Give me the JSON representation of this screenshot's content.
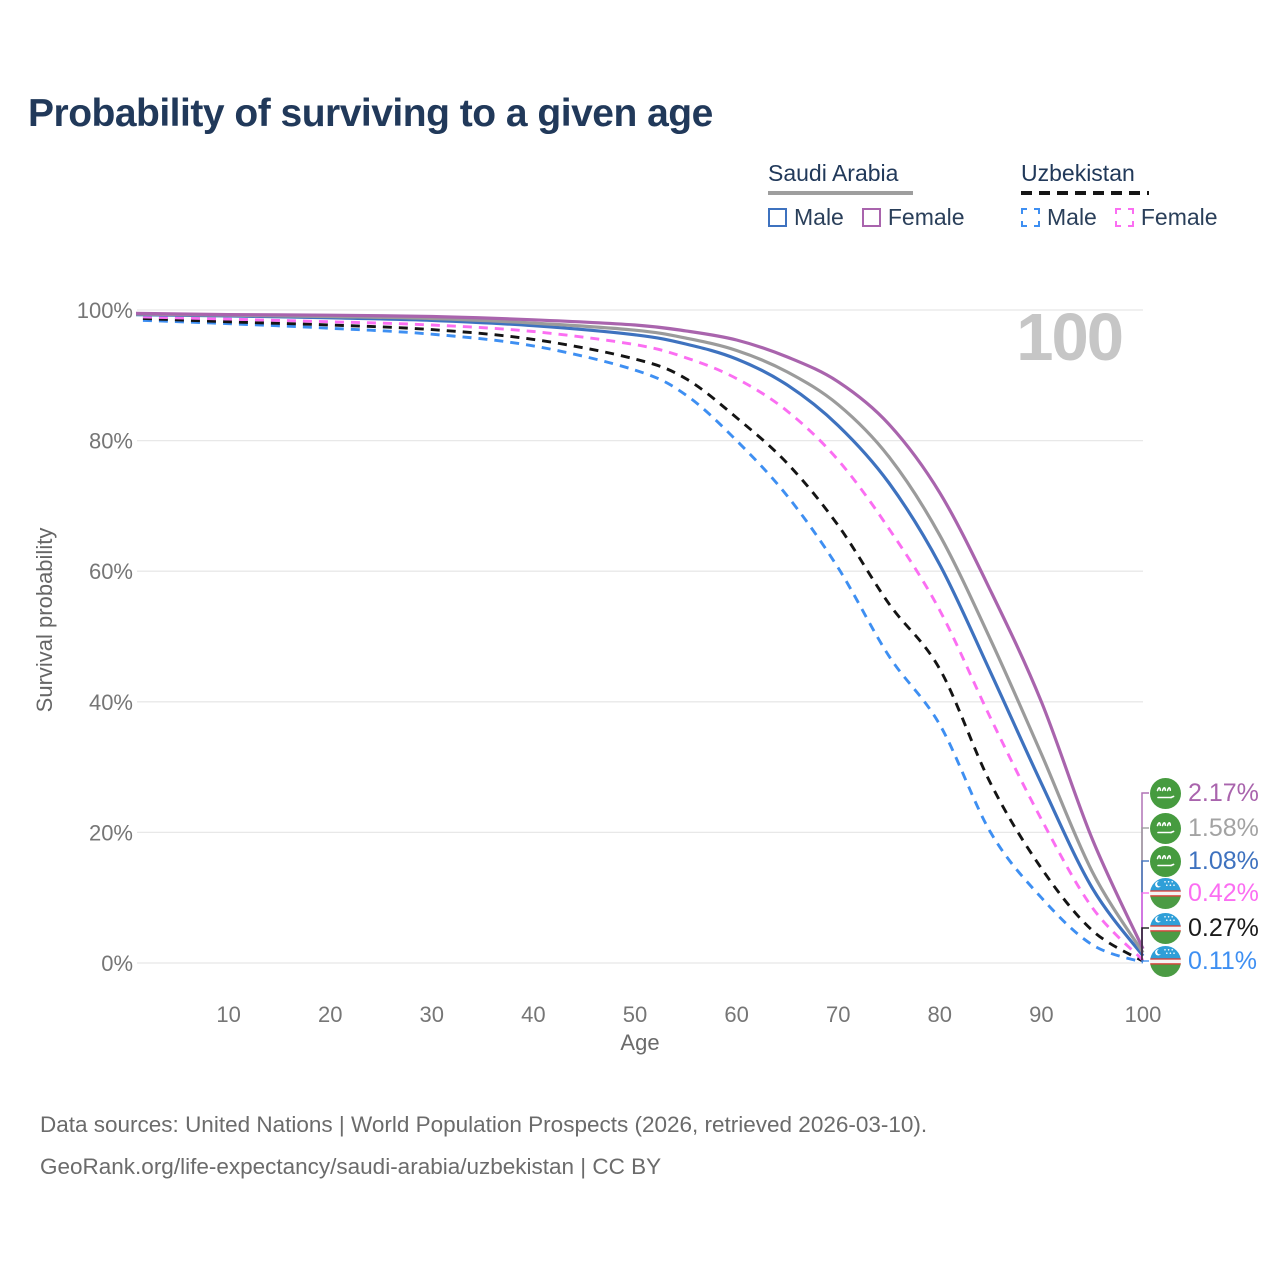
{
  "title": "Probability of surviving to a given age",
  "watermark": "100",
  "legend": {
    "groups": [
      {
        "country": "Saudi Arabia",
        "line_style": "solid",
        "underline_color": "#9e9e9e",
        "items": [
          {
            "label": "Male",
            "color": "#3e72bf"
          },
          {
            "label": "Female",
            "color": "#a964ad"
          }
        ]
      },
      {
        "country": "Uzbekistan",
        "line_style": "dashed",
        "underline_color": "#151515",
        "items": [
          {
            "label": "Male",
            "color": "#3e8ff2"
          },
          {
            "label": "Female",
            "color": "#fb6ef2"
          }
        ]
      }
    ]
  },
  "chart_data": {
    "type": "line",
    "title": "Probability of surviving to a given age",
    "xlabel": "Age",
    "ylabel": "Survival probability",
    "xlim": [
      0,
      100
    ],
    "ylim": [
      0,
      100
    ],
    "grid": "horizontal-only",
    "x_tick_values": [
      10,
      20,
      30,
      40,
      50,
      60,
      70,
      80,
      90,
      100
    ],
    "x_tick_labels": [
      "10",
      "20",
      "30",
      "40",
      "50",
      "60",
      "70",
      "80",
      "90",
      "100"
    ],
    "y_tick_values": [
      0,
      20,
      40,
      60,
      80,
      100
    ],
    "y_tick_labels": [
      "0%",
      "20%",
      "40%",
      "60%",
      "80%",
      "100%"
    ],
    "x": [
      0,
      10,
      20,
      30,
      40,
      50,
      55,
      60,
      65,
      70,
      75,
      80,
      85,
      90,
      95,
      100
    ],
    "series": [
      {
        "name": "Saudi Arabia Female",
        "country": "Saudi Arabia",
        "sex": "Female",
        "color": "#a964ad",
        "dash": "solid",
        "flag": "saudi-arabia",
        "end_label": "2.17%",
        "end_label_color": "#a964ad",
        "values": [
          99.5,
          99.3,
          99.2,
          99.0,
          98.5,
          97.7,
          96.8,
          95.4,
          92.8,
          89.0,
          82.5,
          72.0,
          57.0,
          40.0,
          19.0,
          2.17
        ]
      },
      {
        "name": "Saudi Arabia Both sexes",
        "country": "Saudi Arabia",
        "sex": "Both",
        "color": "#9b9b9b",
        "dash": "solid",
        "flag": "saudi-arabia",
        "end_label": "1.58%",
        "end_label_color": "#a3a3a3",
        "values": [
          99.4,
          99.2,
          99.0,
          98.7,
          98.0,
          96.9,
          95.7,
          93.8,
          90.5,
          85.5,
          77.5,
          65.5,
          49.5,
          32.0,
          14.0,
          1.58
        ]
      },
      {
        "name": "Saudi Arabia Male",
        "country": "Saudi Arabia",
        "sex": "Male",
        "color": "#3e72bf",
        "dash": "solid",
        "flag": "saudi-arabia",
        "end_label": "1.08%",
        "end_label_color": "#3e72bf",
        "values": [
          99.3,
          99.1,
          98.8,
          98.4,
          97.6,
          96.2,
          94.8,
          92.5,
          88.5,
          82.3,
          73.5,
          61.0,
          44.5,
          27.5,
          11.5,
          1.08
        ]
      },
      {
        "name": "Uzbekistan Female",
        "country": "Uzbekistan",
        "sex": "Female",
        "color": "#fb6ef2",
        "dash": "dashed",
        "flag": "uzbekistan",
        "end_label": "0.42%",
        "end_label_color": "#fb6ef2",
        "values": [
          99.0,
          98.6,
          98.2,
          97.7,
          96.7,
          94.7,
          92.7,
          89.5,
          84.5,
          77.0,
          66.5,
          54.0,
          37.5,
          22.0,
          8.5,
          0.42
        ]
      },
      {
        "name": "Uzbekistan Both sexes",
        "country": "Uzbekistan",
        "sex": "Both",
        "color": "#141414",
        "dash": "dashed",
        "flag": "uzbekistan",
        "end_label": "0.27%",
        "end_label_color": "#1a1a1a",
        "values": [
          98.8,
          98.2,
          97.7,
          97.0,
          95.5,
          92.5,
          89.5,
          83.5,
          76.5,
          67.0,
          55.0,
          45.0,
          27.5,
          14.5,
          5.0,
          0.27
        ]
      },
      {
        "name": "Uzbekistan Male",
        "country": "Uzbekistan",
        "sex": "Male",
        "color": "#3e8ff2",
        "dash": "dashed",
        "flag": "uzbekistan",
        "end_label": "0.11%",
        "end_label_color": "#3e8ff2",
        "values": [
          98.5,
          97.9,
          97.2,
          96.3,
          94.5,
          90.8,
          87.0,
          80.0,
          71.5,
          60.5,
          47.0,
          36.5,
          20.0,
          10.0,
          2.8,
          0.11
        ]
      }
    ],
    "legend_position": "top-right"
  },
  "footer": {
    "line1": "Data sources: United Nations | World Population Prospects (2026, retrieved 2026-03-10).",
    "line2": "GeoRank.org/life-expectancy/saudi-arabia/uzbekistan | CC BY"
  }
}
